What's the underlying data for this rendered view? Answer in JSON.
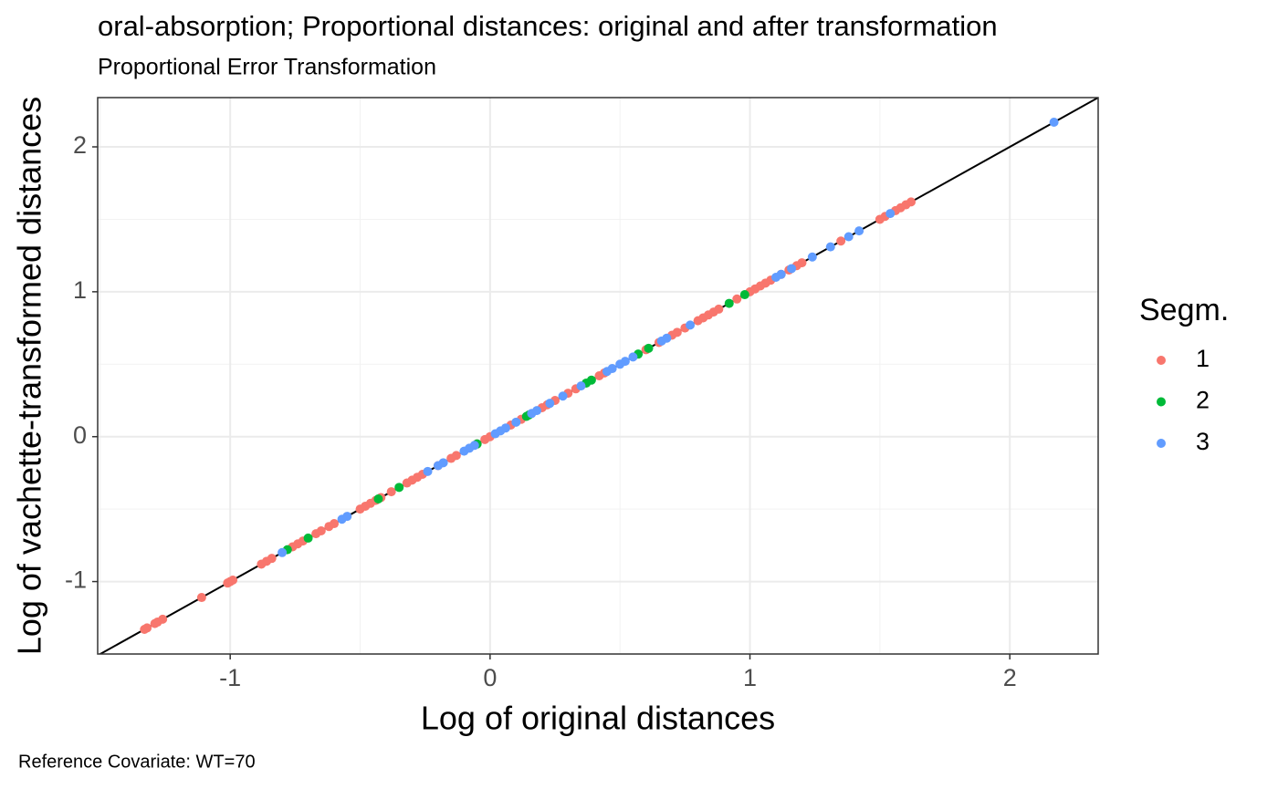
{
  "chart_data": {
    "type": "scatter",
    "title": "oral-absorption; Proportional distances: original and after transformation",
    "subtitle": "Proportional Error Transformation",
    "x_label": "Log of original distances",
    "y_label": "Log of vachette-transformed distances",
    "caption": "Reference Covariate: WT=70",
    "legend_title": "Segm.",
    "legend_position": "right",
    "grid": true,
    "identity_line": true,
    "xlim": [
      -1.51,
      2.34
    ],
    "xticks": [
      -1,
      0,
      1,
      2
    ],
    "ylim": [
      -1.5,
      2.34
    ],
    "yticks": [
      -1,
      0,
      1,
      2
    ],
    "series": [
      {
        "name": "1",
        "color": "#F8766D",
        "x": [
          -1.33,
          -1.32,
          -1.29,
          -1.28,
          -1.26,
          -1.11,
          -1.01,
          -1.0,
          -0.99,
          -0.88,
          -0.86,
          -0.84,
          -0.76,
          -0.74,
          -0.72,
          -0.67,
          -0.65,
          -0.62,
          -0.6,
          -0.5,
          -0.48,
          -0.46,
          -0.44,
          -0.42,
          -0.38,
          -0.32,
          -0.3,
          -0.28,
          -0.26,
          -0.2,
          -0.15,
          -0.13,
          -0.05,
          -0.02,
          0.0,
          0.08,
          0.12,
          0.2,
          0.22,
          0.25,
          0.3,
          0.33,
          0.42,
          0.44,
          0.6,
          0.65,
          0.7,
          0.72,
          0.75,
          0.8,
          0.82,
          0.84,
          0.86,
          0.88,
          0.95,
          1.0,
          1.02,
          1.04,
          1.06,
          1.08,
          1.12,
          1.15,
          1.18,
          1.2,
          1.35,
          1.5,
          1.52,
          1.56,
          1.58,
          1.6,
          1.62
        ],
        "values": [
          -1.33,
          -1.32,
          -1.29,
          -1.28,
          -1.26,
          -1.11,
          -1.01,
          -1.0,
          -0.99,
          -0.88,
          -0.86,
          -0.84,
          -0.76,
          -0.74,
          -0.72,
          -0.67,
          -0.65,
          -0.62,
          -0.6,
          -0.5,
          -0.48,
          -0.46,
          -0.44,
          -0.42,
          -0.38,
          -0.32,
          -0.3,
          -0.28,
          -0.26,
          -0.2,
          -0.15,
          -0.13,
          -0.05,
          -0.02,
          0.0,
          0.08,
          0.12,
          0.2,
          0.22,
          0.25,
          0.3,
          0.33,
          0.42,
          0.44,
          0.6,
          0.65,
          0.7,
          0.72,
          0.75,
          0.8,
          0.82,
          0.84,
          0.86,
          0.88,
          0.95,
          1.0,
          1.02,
          1.04,
          1.06,
          1.08,
          1.12,
          1.15,
          1.18,
          1.2,
          1.35,
          1.5,
          1.52,
          1.56,
          1.58,
          1.6,
          1.62
        ]
      },
      {
        "name": "2",
        "color": "#00BA38",
        "x": [
          -0.78,
          -0.7,
          -0.43,
          -0.35,
          -0.05,
          0.14,
          0.15,
          0.37,
          0.39,
          0.57,
          0.61,
          0.92,
          0.98
        ],
        "values": [
          -0.78,
          -0.7,
          -0.43,
          -0.35,
          -0.05,
          0.14,
          0.15,
          0.37,
          0.39,
          0.57,
          0.61,
          0.92,
          0.98
        ]
      },
      {
        "name": "3",
        "color": "#619CFF",
        "x": [
          -0.8,
          -0.57,
          -0.55,
          -0.24,
          -0.2,
          -0.18,
          -0.1,
          -0.08,
          -0.06,
          0.02,
          0.04,
          0.06,
          0.1,
          0.16,
          0.18,
          0.23,
          0.28,
          0.35,
          0.45,
          0.47,
          0.5,
          0.52,
          0.55,
          0.66,
          0.68,
          0.77,
          1.1,
          1.12,
          1.16,
          1.24,
          1.31,
          1.38,
          1.42,
          1.54,
          2.17
        ],
        "values": [
          -0.8,
          -0.57,
          -0.55,
          -0.24,
          -0.2,
          -0.18,
          -0.1,
          -0.08,
          -0.06,
          0.02,
          0.04,
          0.06,
          0.1,
          0.16,
          0.18,
          0.23,
          0.28,
          0.35,
          0.45,
          0.47,
          0.5,
          0.52,
          0.55,
          0.66,
          0.68,
          0.77,
          1.1,
          1.12,
          1.16,
          1.24,
          1.31,
          1.38,
          1.42,
          1.54,
          2.17
        ]
      }
    ]
  }
}
